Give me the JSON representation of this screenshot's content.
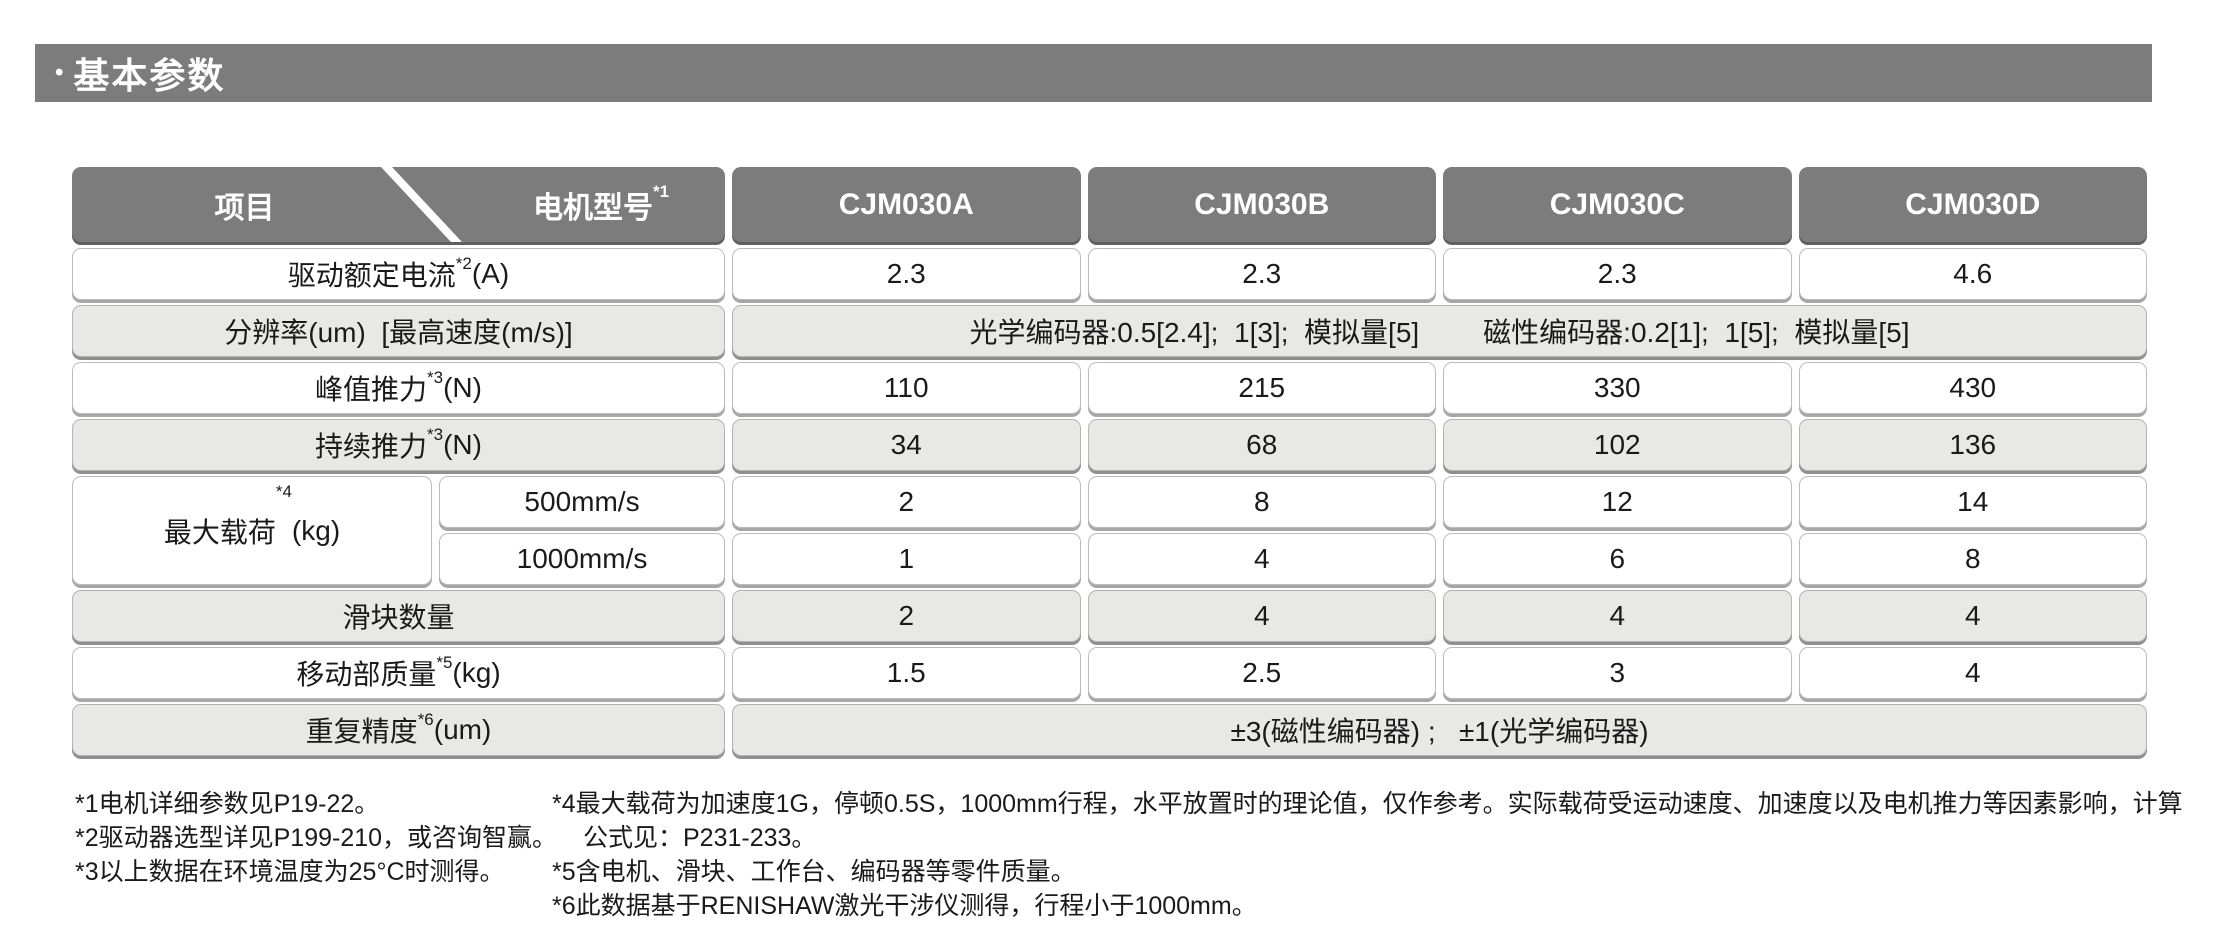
{
  "title": {
    "bullet": "•",
    "text": "基本参数"
  },
  "table": {
    "corner": {
      "item": "项目",
      "motor": "电机型号",
      "motor_sup": "*1"
    },
    "models": [
      "CJM030A",
      "CJM030B",
      "CJM030C",
      "CJM030D"
    ],
    "rows": {
      "rated_current": {
        "base": "驱动额定电流",
        "sup": "*2",
        "unit": "(A)",
        "values": [
          "2.3",
          "2.3",
          "2.3",
          "4.6"
        ]
      },
      "resolution": {
        "base": "分辨率(um)  [最高速度(m/s)]",
        "optical": "光学编码器:0.5[2.4];  1[3];  模拟量[5]",
        "magnetic": "磁性编码器:0.2[1];  1[5];  模拟量[5]"
      },
      "peak_force": {
        "base": "峰值推力",
        "sup": "*3",
        "unit": "(N)",
        "values": [
          "110",
          "215",
          "330",
          "430"
        ]
      },
      "cont_force": {
        "base": "持续推力",
        "sup": "*3",
        "unit": "(N)",
        "values": [
          "34",
          "68",
          "102",
          "136"
        ]
      },
      "max_load": {
        "base": "最大载荷",
        "sup": "*4",
        "unit": "(kg)",
        "speeds": [
          "500mm/s",
          "1000mm/s"
        ],
        "values_500": [
          "2",
          "8",
          "12",
          "14"
        ],
        "values_1000": [
          "1",
          "4",
          "6",
          "8"
        ]
      },
      "slider_count": {
        "base": "滑块数量",
        "values": [
          "2",
          "4",
          "4",
          "4"
        ]
      },
      "moving_mass": {
        "base": "移动部质量",
        "sup": "*5",
        "unit": "(kg)",
        "values": [
          "1.5",
          "2.5",
          "3",
          "4"
        ]
      },
      "repeatability": {
        "base": "重复精度",
        "sup": "*6",
        "unit": "(um)",
        "merged": "±3(磁性编码器) ;   ±1(光学编码器)"
      }
    }
  },
  "footnotes": {
    "left": [
      "*1电机详细参数见P19-22。",
      "*2驱动器选型详见P199-210，或咨询智赢。",
      "*3以上数据在环境温度为25°C时测得。"
    ],
    "right": [
      "*4最大载荷为加速度1G，停顿0.5S，1000mm行程，水平放置时的理论值，仅作参考。实际载荷受运动速度、加速度以及电机推力等因素影响，计算",
      "公式见：P231-233。",
      "*5含电机、滑块、工作台、编码器等零件质量。",
      "*6此数据基于RENISHAW激光干涉仪测得，行程小于1000mm。"
    ]
  },
  "colors": {
    "header_gray": "#7c7c7c",
    "row_gray": "#e8e8e7",
    "text": "#1a1a1a"
  }
}
